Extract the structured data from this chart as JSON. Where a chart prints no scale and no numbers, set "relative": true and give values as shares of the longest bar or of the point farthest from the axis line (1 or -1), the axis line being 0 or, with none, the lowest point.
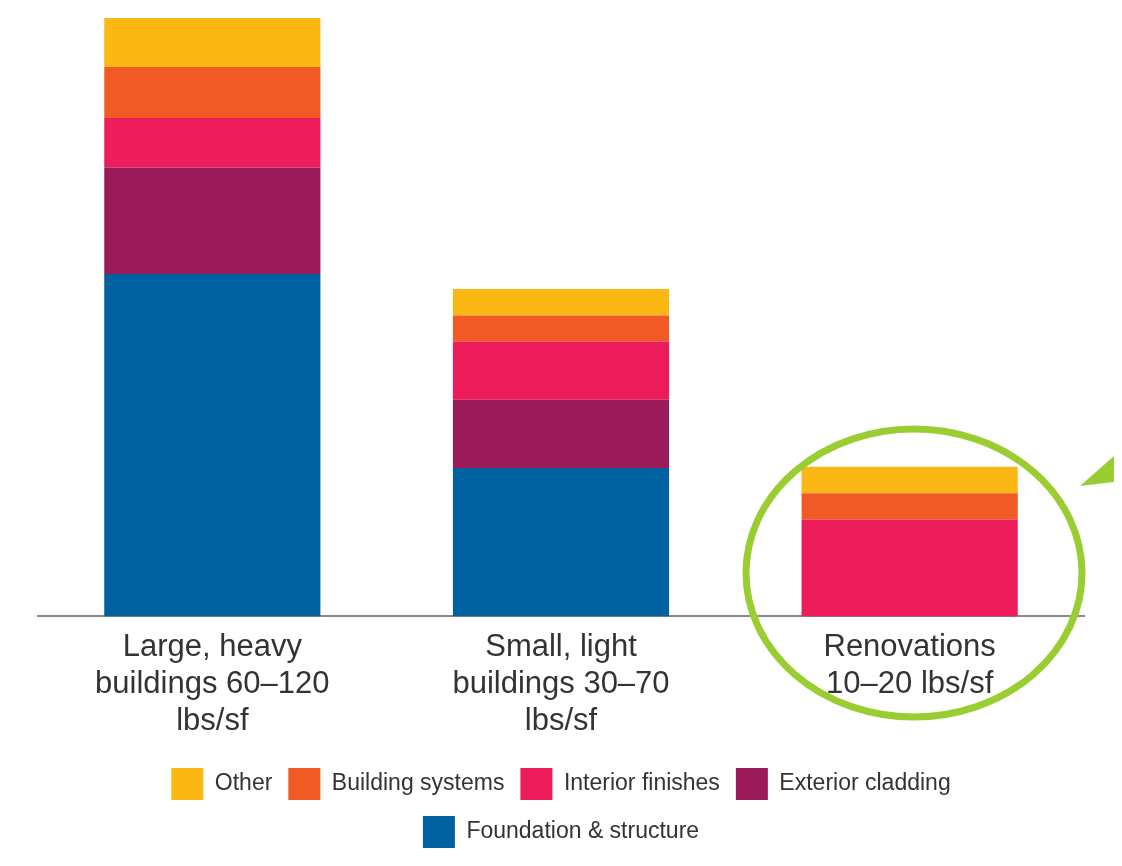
{
  "chart_data": {
    "type": "bar",
    "stacked": true,
    "relative": true,
    "legend": "bottom",
    "grid": false,
    "categories": [
      "Large, heavy buildings 60–120 lbs/sf",
      "Small, light buildings 30–70 lbs/sf",
      "Renovations 10–20 lbs/sf"
    ],
    "series": [
      {
        "name": "Foundation & structure",
        "color": "#0060a0",
        "values": [
          0.572,
          0.248,
          0
        ]
      },
      {
        "name": "Exterior cladding",
        "color": "#9b1b5a",
        "values": [
          0.178,
          0.114,
          0
        ]
      },
      {
        "name": "Interior finishes",
        "color": "#ed1c5b",
        "values": [
          0.083,
          0.097,
          0.162
        ]
      },
      {
        "name": "Building systems",
        "color": "#f15a24",
        "values": [
          0.085,
          0.044,
          0.044
        ]
      },
      {
        "name": "Other",
        "color": "#fbb713",
        "values": [
          0.082,
          0.044,
          0.044
        ]
      }
    ]
  }
}
